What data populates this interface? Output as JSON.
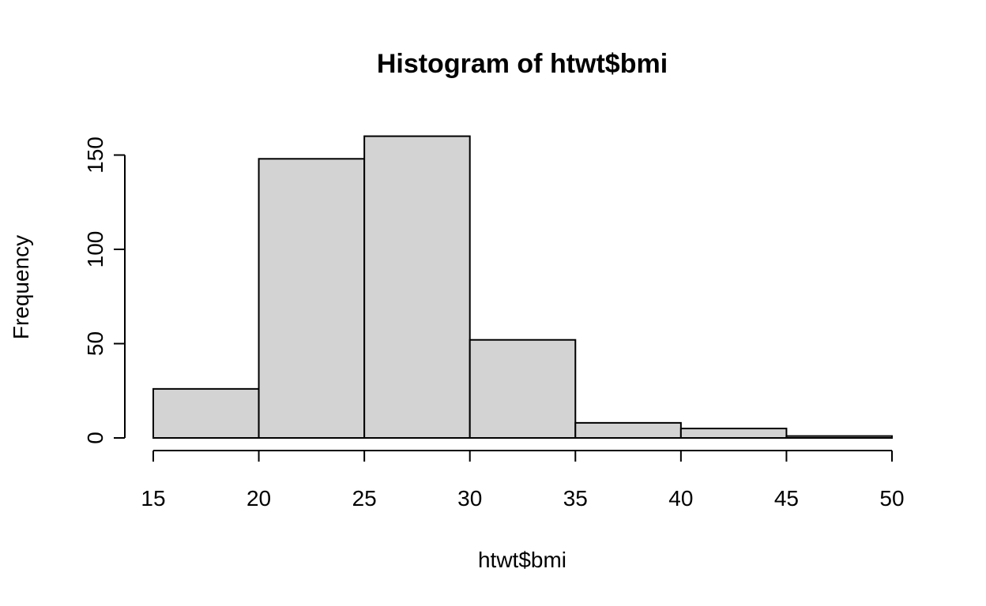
{
  "chart_data": {
    "type": "bar",
    "title": "Histogram of htwt$bmi",
    "xlabel": "htwt$bmi",
    "ylabel": "Frequency",
    "bins": [
      {
        "from": 15,
        "to": 20,
        "count": 26
      },
      {
        "from": 20,
        "to": 25,
        "count": 148
      },
      {
        "from": 25,
        "to": 30,
        "count": 160
      },
      {
        "from": 30,
        "to": 35,
        "count": 52
      },
      {
        "from": 35,
        "to": 40,
        "count": 8
      },
      {
        "from": 40,
        "to": 45,
        "count": 5
      },
      {
        "from": 45,
        "to": 50,
        "count": 1
      }
    ],
    "x_ticks": [
      15,
      20,
      25,
      30,
      35,
      40,
      45,
      50
    ],
    "y_ticks": [
      0,
      50,
      100,
      150
    ],
    "xlim": [
      15,
      50
    ],
    "ylim": [
      0,
      160
    ],
    "grid": false,
    "legend": "none",
    "colors": {
      "bar_fill": "#d3d3d3",
      "bar_stroke": "#000000",
      "axis": "#000000",
      "text": "#000000",
      "background": "#ffffff"
    }
  }
}
